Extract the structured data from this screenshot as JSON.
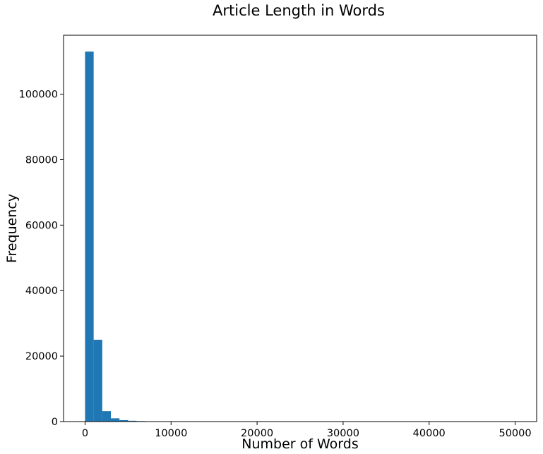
{
  "chart_data": {
    "type": "bar",
    "title": "Article Length in Words",
    "xlabel": "Number of Words",
    "ylabel": "Frequency",
    "xlim": [
      -2500,
      52500
    ],
    "ylim": [
      0,
      118000
    ],
    "xticks": [
      0,
      10000,
      20000,
      30000,
      40000,
      50000
    ],
    "yticks": [
      0,
      20000,
      40000,
      60000,
      80000,
      100000
    ],
    "grid": false,
    "color": "#1f77b4",
    "bin_width": 1000,
    "bins_start": [
      0,
      1000,
      2000,
      3000,
      4000,
      5000,
      6000,
      7000,
      8000,
      9000
    ],
    "values": [
      113000,
      25000,
      3200,
      1000,
      450,
      250,
      150,
      100,
      50,
      30
    ]
  }
}
